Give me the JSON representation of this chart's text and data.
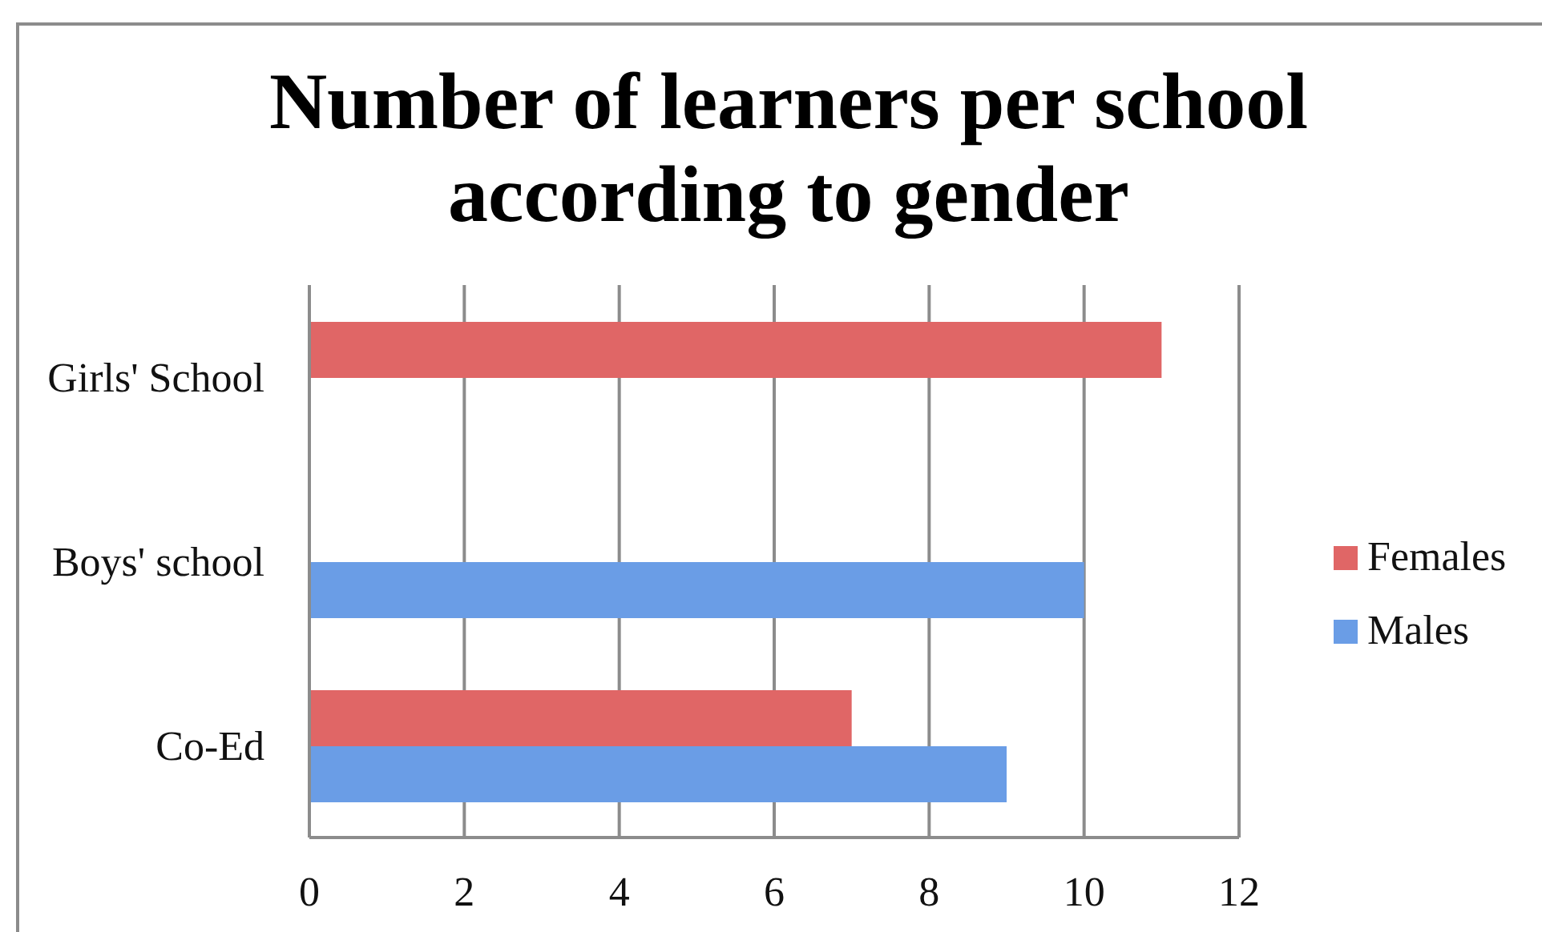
{
  "chart_data": {
    "type": "bar",
    "orientation": "horizontal",
    "title": "Number of learners per school according to gender",
    "categories": [
      "Girls' School",
      "Boys' school",
      "Co-Ed"
    ],
    "series": [
      {
        "name": "Females",
        "color": "#e06666",
        "values": [
          11,
          null,
          7
        ]
      },
      {
        "name": "Males",
        "color": "#6a9de6",
        "values": [
          null,
          10,
          9
        ]
      }
    ],
    "xlim": [
      0,
      12
    ],
    "xticks": [
      0,
      2,
      4,
      6,
      8,
      10,
      12
    ],
    "grid": "x",
    "legend": "right"
  }
}
